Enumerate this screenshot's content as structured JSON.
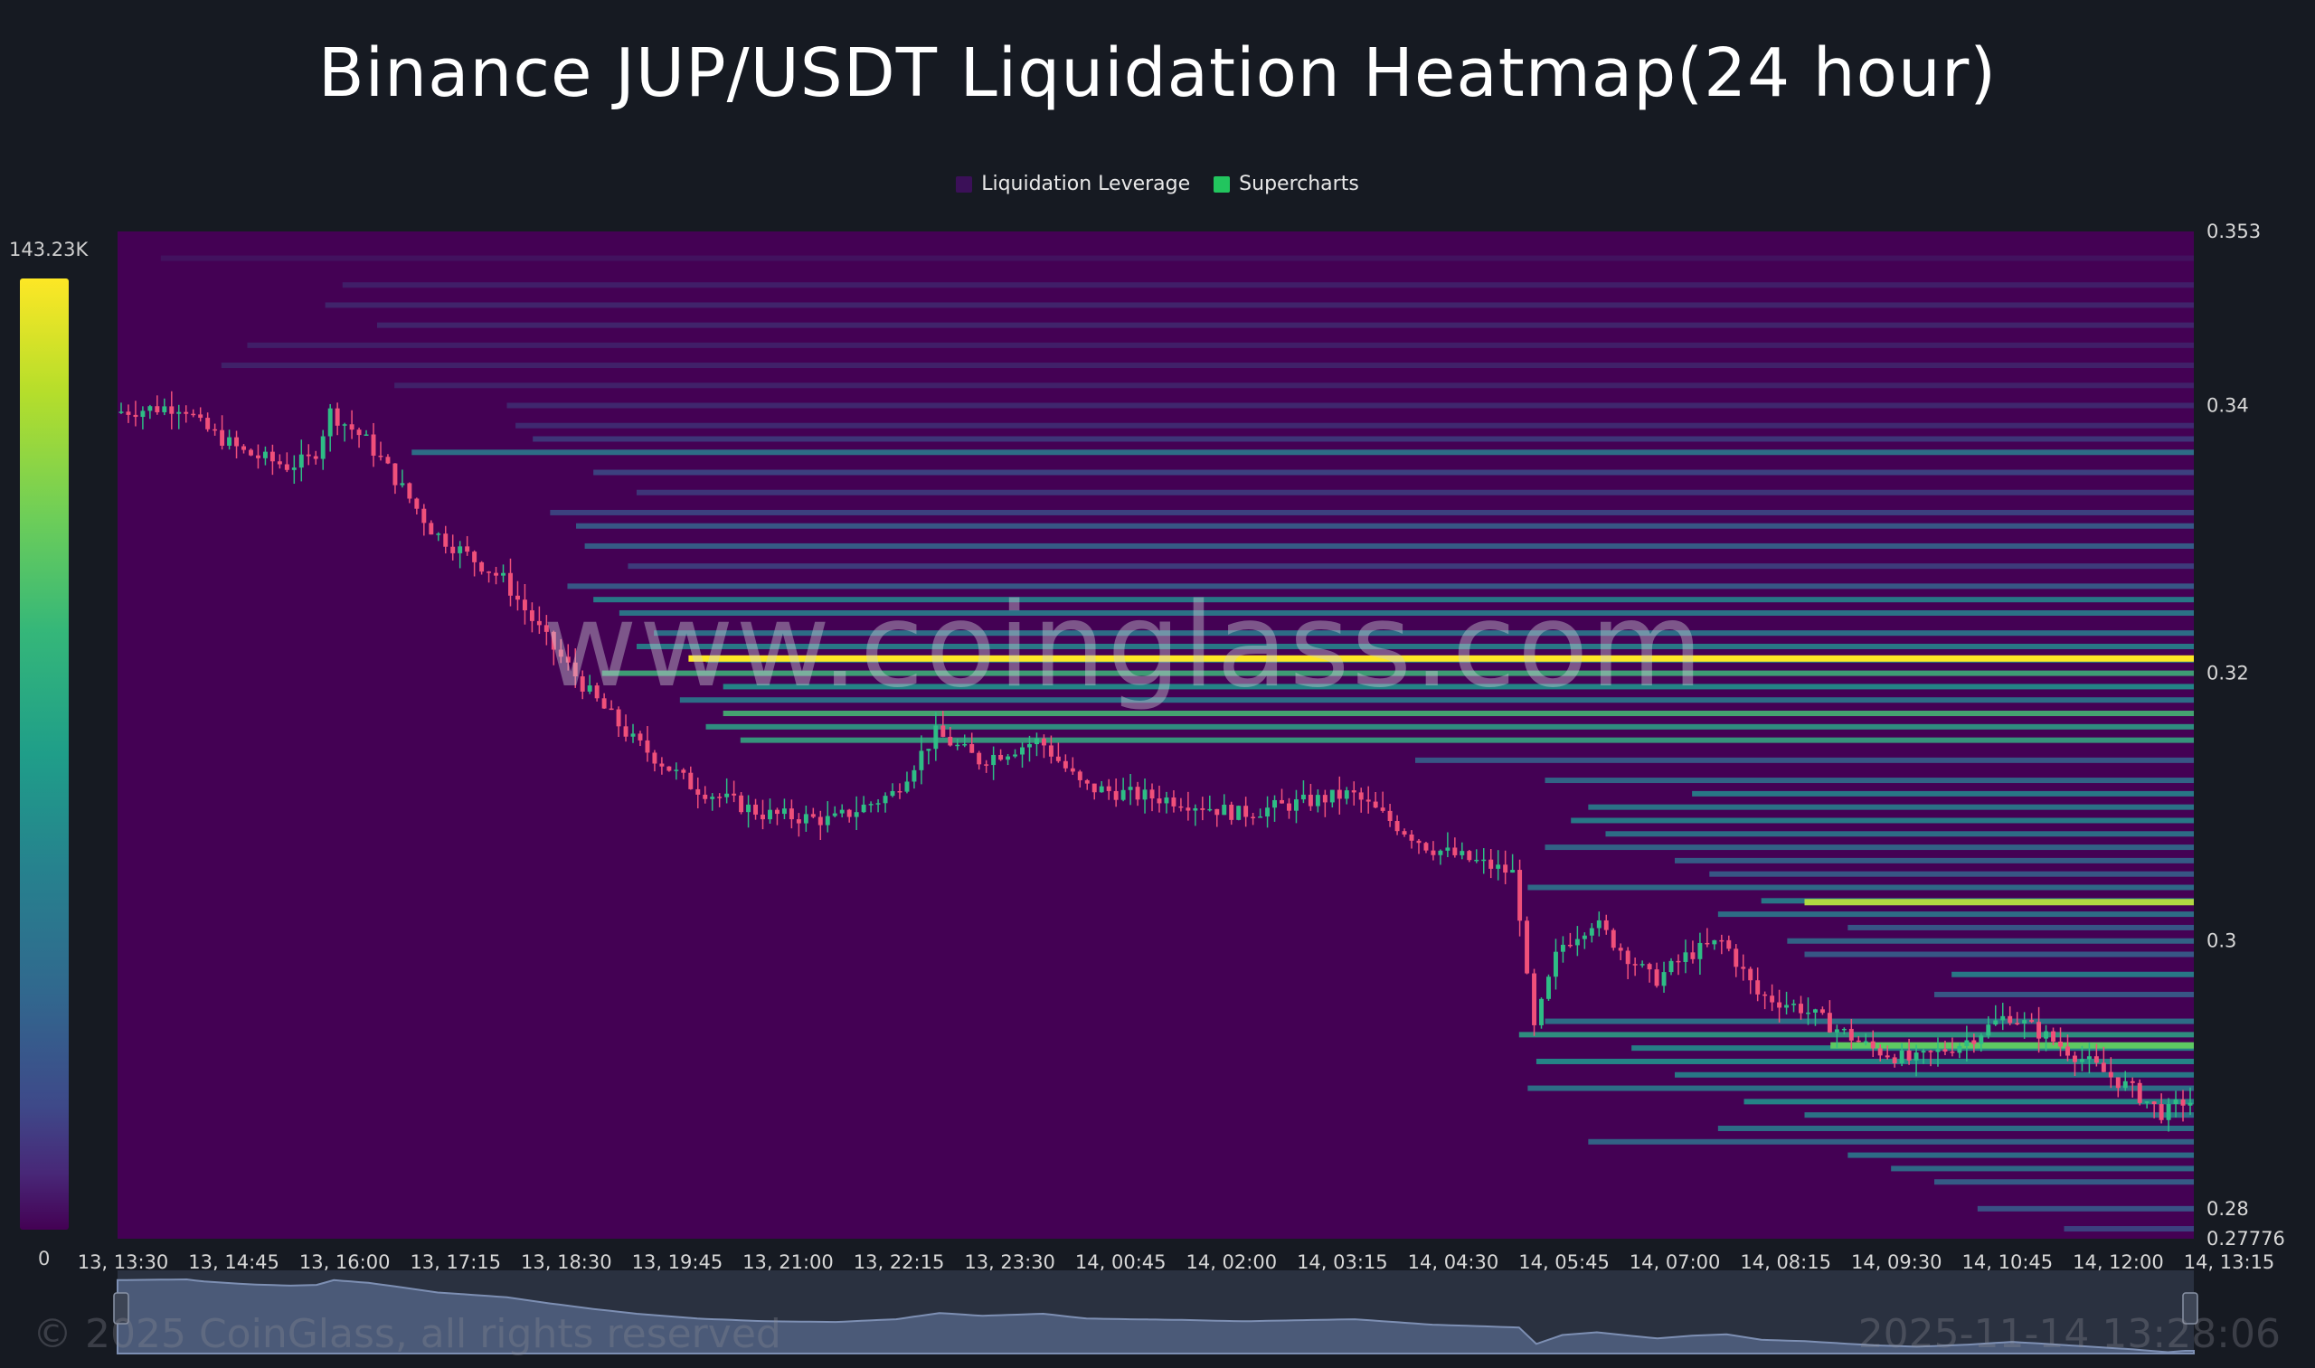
{
  "title": "Binance JUP/USDT Liquidation Heatmap(24 hour)",
  "legend": [
    {
      "label": "Liquidation Leverage",
      "color": "#3b1058"
    },
    {
      "label": "Supercharts",
      "color": "#22c55e"
    }
  ],
  "colorbar": {
    "max_label": "143.23K",
    "min_label": "0"
  },
  "watermark": "www.coinglass.com",
  "footer": {
    "copyright": "© 2025 CoinGlass, all rights reserved",
    "timestamp": "2025-11-14 13:28:06"
  },
  "colors": {
    "background": "#161a22",
    "heatmap_base": "#440154",
    "candle_up": "#2ebd85",
    "candle_down": "#f0507a",
    "hot_band": "#fde725"
  },
  "chart_data": {
    "type": "heatmap",
    "title": "Binance JUP/USDT Liquidation Heatmap(24 hour)",
    "y_axis_position": "right",
    "ylim": [
      0.27776,
      0.353
    ],
    "y_ticks": [
      "0.353",
      "0.34",
      "0.32",
      "0.3",
      "0.28",
      "0.27776"
    ],
    "y_tick_values": [
      0.353,
      0.34,
      0.32,
      0.3,
      0.28,
      0.27776
    ],
    "x_ticks": [
      "13, 13:30",
      "13, 14:45",
      "13, 16:00",
      "13, 17:15",
      "13, 18:30",
      "13, 19:45",
      "13, 21:00",
      "13, 22:15",
      "13, 23:30",
      "14, 00:45",
      "14, 02:00",
      "14, 03:15",
      "14, 04:30",
      "14, 05:45",
      "14, 07:00",
      "14, 08:15",
      "14, 09:30",
      "14, 10:45",
      "14, 12:00",
      "14, 13:15"
    ],
    "x_range_hours": [
      0,
      24
    ],
    "price_path": [
      [
        0,
        0.3395
      ],
      [
        0.8,
        0.34
      ],
      [
        1.0,
        0.3385
      ],
      [
        1.5,
        0.3365
      ],
      [
        2.0,
        0.3355
      ],
      [
        2.3,
        0.336
      ],
      [
        2.5,
        0.3395
      ],
      [
        2.7,
        0.3385
      ],
      [
        2.9,
        0.3375
      ],
      [
        3.2,
        0.335
      ],
      [
        3.7,
        0.3305
      ],
      [
        4.5,
        0.327
      ],
      [
        5.0,
        0.3225
      ],
      [
        5.5,
        0.3185
      ],
      [
        6.0,
        0.315
      ],
      [
        6.7,
        0.3115
      ],
      [
        7.5,
        0.3095
      ],
      [
        8.3,
        0.309
      ],
      [
        9.0,
        0.311
      ],
      [
        9.5,
        0.3155
      ],
      [
        10.0,
        0.3135
      ],
      [
        10.7,
        0.315
      ],
      [
        11.2,
        0.3115
      ],
      [
        11.7,
        0.311
      ],
      [
        12.3,
        0.3105
      ],
      [
        13.0,
        0.3095
      ],
      [
        14.3,
        0.311
      ],
      [
        15.2,
        0.307
      ],
      [
        16.2,
        0.305
      ],
      [
        16.4,
        0.293
      ],
      [
        16.7,
        0.2995
      ],
      [
        17.1,
        0.3015
      ],
      [
        17.4,
        0.2995
      ],
      [
        17.8,
        0.297
      ],
      [
        18.0,
        0.298
      ],
      [
        18.2,
        0.299
      ],
      [
        18.6,
        0.3
      ],
      [
        19.0,
        0.296
      ],
      [
        19.5,
        0.295
      ],
      [
        20.3,
        0.292
      ],
      [
        20.8,
        0.291
      ],
      [
        21.4,
        0.2925
      ],
      [
        21.9,
        0.2945
      ],
      [
        22.3,
        0.293
      ],
      [
        22.8,
        0.291
      ],
      [
        23.3,
        0.289
      ],
      [
        23.7,
        0.287
      ],
      [
        23.9,
        0.288
      ]
    ],
    "liquidation_levels": [
      {
        "price": 0.351,
        "start": 0.5,
        "intensity": 0.06
      },
      {
        "price": 0.349,
        "start": 2.6,
        "intensity": 0.1
      },
      {
        "price": 0.3475,
        "start": 2.4,
        "intensity": 0.12
      },
      {
        "price": 0.346,
        "start": 3.0,
        "intensity": 0.12
      },
      {
        "price": 0.3445,
        "start": 1.5,
        "intensity": 0.1
      },
      {
        "price": 0.343,
        "start": 1.2,
        "intensity": 0.11
      },
      {
        "price": 0.3415,
        "start": 3.2,
        "intensity": 0.11
      },
      {
        "price": 0.34,
        "start": 4.5,
        "intensity": 0.13
      },
      {
        "price": 0.3385,
        "start": 4.6,
        "intensity": 0.14
      },
      {
        "price": 0.3375,
        "start": 4.8,
        "intensity": 0.18
      },
      {
        "price": 0.3365,
        "start": 3.4,
        "intensity": 0.4
      },
      {
        "price": 0.335,
        "start": 5.5,
        "intensity": 0.22
      },
      {
        "price": 0.3335,
        "start": 6.0,
        "intensity": 0.18
      },
      {
        "price": 0.332,
        "start": 5.0,
        "intensity": 0.22
      },
      {
        "price": 0.331,
        "start": 5.3,
        "intensity": 0.3
      },
      {
        "price": 0.3295,
        "start": 5.4,
        "intensity": 0.32
      },
      {
        "price": 0.328,
        "start": 5.9,
        "intensity": 0.2
      },
      {
        "price": 0.3265,
        "start": 5.2,
        "intensity": 0.3
      },
      {
        "price": 0.3255,
        "start": 5.5,
        "intensity": 0.45
      },
      {
        "price": 0.3245,
        "start": 5.8,
        "intensity": 0.42
      },
      {
        "price": 0.323,
        "start": 6.2,
        "intensity": 0.4
      },
      {
        "price": 0.322,
        "start": 6.0,
        "intensity": 0.45
      },
      {
        "price": 0.321,
        "start": 6.8,
        "intensity": 0.48
      },
      {
        "price": 0.32,
        "start": 5.6,
        "intensity": 0.62
      },
      {
        "price": 0.319,
        "start": 7.0,
        "intensity": 0.5
      },
      {
        "price": 0.318,
        "start": 6.5,
        "intensity": 0.4
      },
      {
        "price": 0.317,
        "start": 7.0,
        "intensity": 0.65
      },
      {
        "price": 0.316,
        "start": 6.8,
        "intensity": 0.55
      },
      {
        "price": 0.315,
        "start": 7.2,
        "intensity": 0.58
      },
      {
        "price": 0.3135,
        "start": 15.0,
        "intensity": 0.3
      },
      {
        "price": 0.312,
        "start": 16.5,
        "intensity": 0.36
      },
      {
        "price": 0.311,
        "start": 18.2,
        "intensity": 0.45
      },
      {
        "price": 0.31,
        "start": 17.0,
        "intensity": 0.42
      },
      {
        "price": 0.309,
        "start": 16.8,
        "intensity": 0.45
      },
      {
        "price": 0.308,
        "start": 17.2,
        "intensity": 0.4
      },
      {
        "price": 0.307,
        "start": 16.5,
        "intensity": 0.35
      },
      {
        "price": 0.306,
        "start": 18.0,
        "intensity": 0.32
      },
      {
        "price": 0.305,
        "start": 18.4,
        "intensity": 0.3
      },
      {
        "price": 0.304,
        "start": 16.3,
        "intensity": 0.38
      },
      {
        "price": 0.303,
        "start": 19.0,
        "intensity": 0.44
      },
      {
        "price": 0.302,
        "start": 18.5,
        "intensity": 0.4
      },
      {
        "price": 0.301,
        "start": 20.0,
        "intensity": 0.3
      },
      {
        "price": 0.3,
        "start": 19.3,
        "intensity": 0.35
      },
      {
        "price": 0.299,
        "start": 19.5,
        "intensity": 0.3
      },
      {
        "price": 0.2975,
        "start": 21.2,
        "intensity": 0.45
      },
      {
        "price": 0.296,
        "start": 21.0,
        "intensity": 0.3
      },
      {
        "price": 0.294,
        "start": 16.5,
        "intensity": 0.4
      },
      {
        "price": 0.293,
        "start": 16.2,
        "intensity": 0.55
      },
      {
        "price": 0.292,
        "start": 17.5,
        "intensity": 0.48
      },
      {
        "price": 0.291,
        "start": 16.4,
        "intensity": 0.5
      },
      {
        "price": 0.29,
        "start": 18.0,
        "intensity": 0.45
      },
      {
        "price": 0.289,
        "start": 16.3,
        "intensity": 0.4
      },
      {
        "price": 0.288,
        "start": 18.8,
        "intensity": 0.5
      },
      {
        "price": 0.287,
        "start": 19.5,
        "intensity": 0.42
      },
      {
        "price": 0.286,
        "start": 18.5,
        "intensity": 0.4
      },
      {
        "price": 0.285,
        "start": 17.0,
        "intensity": 0.35
      },
      {
        "price": 0.284,
        "start": 20.0,
        "intensity": 0.4
      },
      {
        "price": 0.283,
        "start": 20.5,
        "intensity": 0.38
      },
      {
        "price": 0.282,
        "start": 21.0,
        "intensity": 0.32
      },
      {
        "price": 0.28,
        "start": 21.5,
        "intensity": 0.28
      },
      {
        "price": 0.2785,
        "start": 22.5,
        "intensity": 0.22
      }
    ],
    "hot_levels": [
      {
        "price": 0.3211,
        "start": 6.6,
        "intensity": 1.0
      },
      {
        "price": 0.3029,
        "start": 19.5,
        "intensity": 0.88
      },
      {
        "price": 0.2922,
        "start": 19.8,
        "intensity": 0.75
      }
    ]
  }
}
